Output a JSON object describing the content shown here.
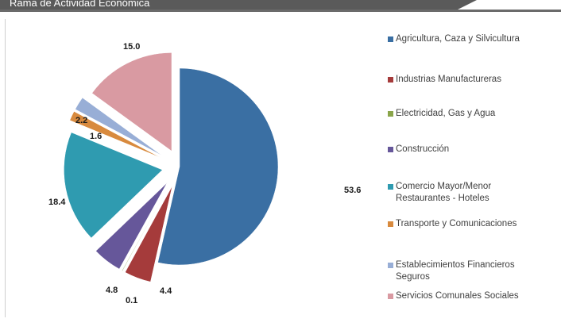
{
  "header": {
    "title": "Rama de Actividad Económica"
  },
  "chart_data": {
    "type": "pie",
    "exploded": true,
    "categories": [
      "Agricultura, Caza y Silvicultura",
      "Industrias Manufactureras",
      "Electricidad, Gas y Agua",
      "Construcción",
      "Comercio Mayor/Menor Restaurantes - Hoteles",
      "Transporte y Comunicaciones",
      "Establecimientos Financieros Seguros",
      "Servicios Comunales Sociales"
    ],
    "legend_lines": [
      [
        "Agricultura, Caza y Silvicultura"
      ],
      [
        "Industrias Manufactureras"
      ],
      [
        "Electricidad, Gas y Agua"
      ],
      [
        "Construcción"
      ],
      [
        "Comercio Mayor/Menor",
        "Restaurantes - Hoteles"
      ],
      [
        "Transporte y Comunicaciones"
      ],
      [
        "Establecimientos Financieros",
        "Seguros"
      ],
      [
        "Servicios Comunales Sociales"
      ]
    ],
    "values": [
      53.6,
      4.4,
      0.1,
      4.8,
      18.4,
      1.6,
      2.2,
      15.0
    ],
    "labels": [
      "53.6",
      "4.4",
      "0.1",
      "4.8",
      "18.4",
      "1.6",
      "2.2",
      "15.0"
    ],
    "colors": [
      "#3a6fa3",
      "#a53b3b",
      "#8aa54a",
      "#66579a",
      "#2f9bb0",
      "#d88a3e",
      "#98aed6",
      "#d99aa2"
    ],
    "legend_placement": "right"
  }
}
